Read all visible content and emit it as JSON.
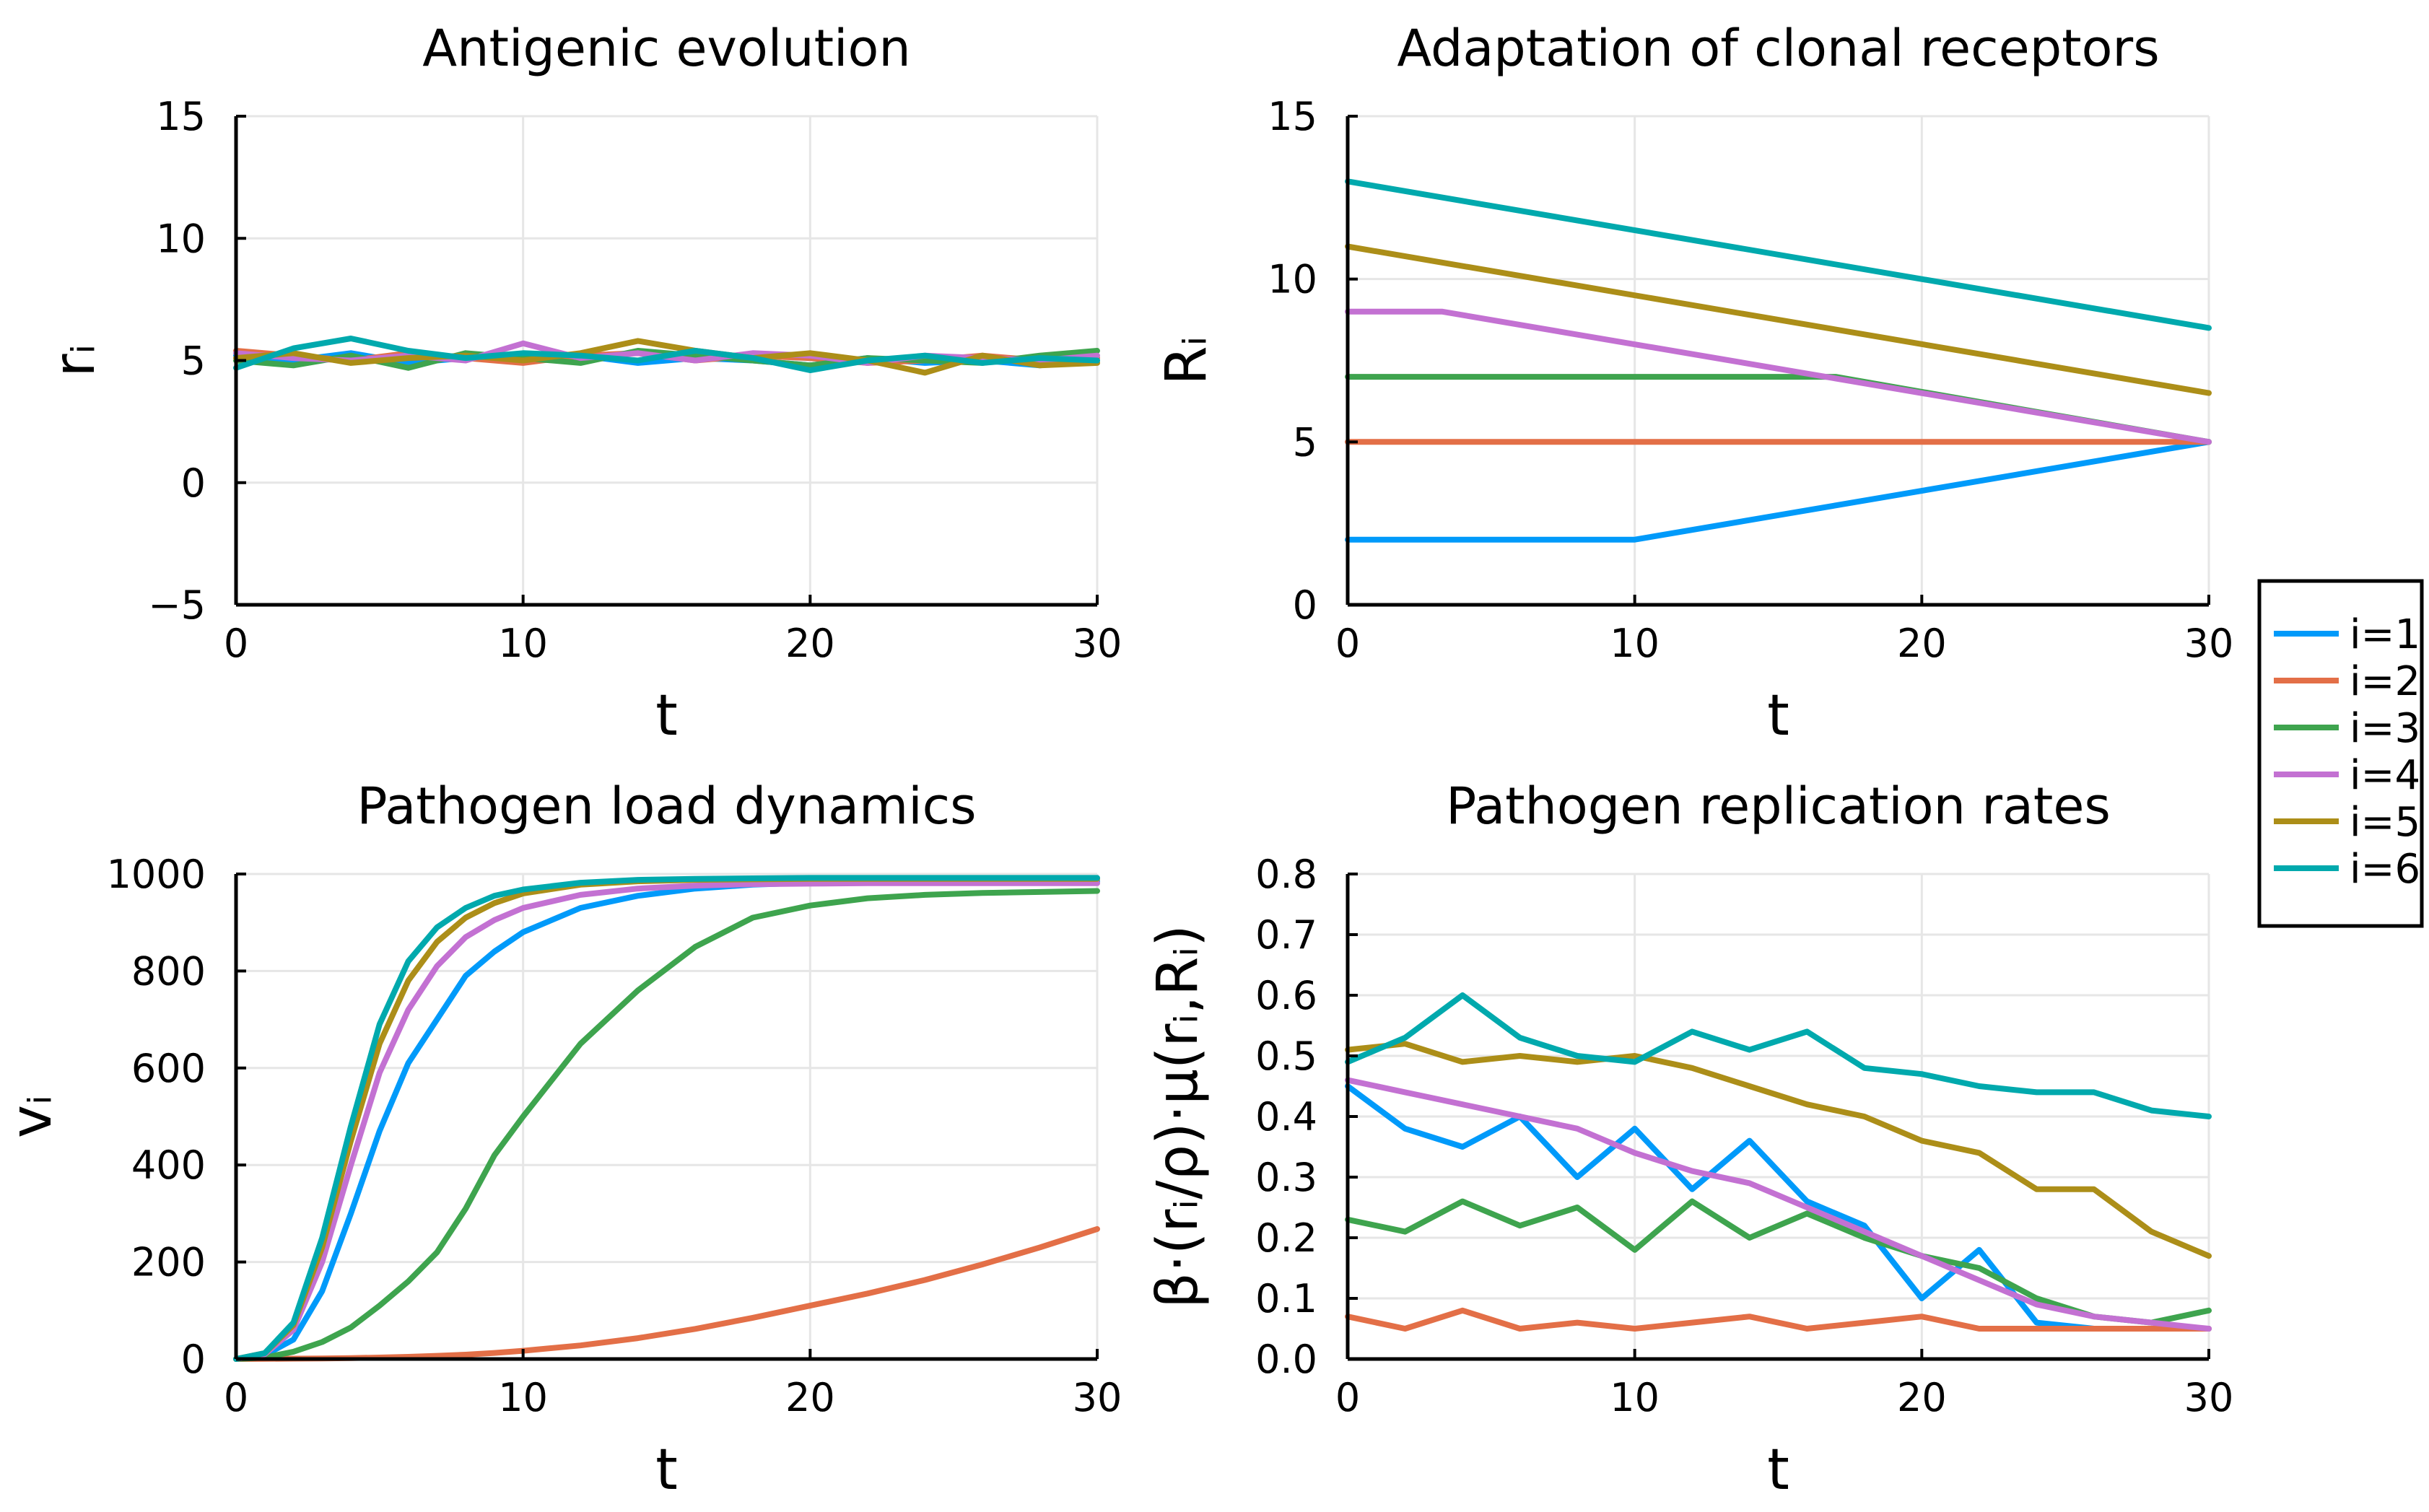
{
  "colors": {
    "i1": "#009AFA",
    "i2": "#E36F47",
    "i3": "#3EA44E",
    "i4": "#C371D2",
    "i5": "#AC8E18",
    "i6": "#00A9AD",
    "grid": "#E6E6E6",
    "axis": "#000000"
  },
  "legend": {
    "entries": [
      "i=1",
      "i=2",
      "i=3",
      "i=4",
      "i=5",
      "i=6"
    ]
  },
  "chart_data": [
    {
      "type": "line",
      "title": "Antigenic evolution",
      "xlabel": "t",
      "ylabel": "rᵢ",
      "xlim": [
        0,
        30
      ],
      "ylim": [
        -5,
        15
      ],
      "xticks": [
        0,
        10,
        20,
        30
      ],
      "xtick_labels": [
        "0",
        "10",
        "20",
        "30"
      ],
      "yticks": [
        -5,
        0,
        5,
        10,
        15
      ],
      "ytick_labels": [
        "−5",
        "0",
        "5",
        "10",
        "15"
      ],
      "grid": true,
      "x": [
        0,
        2,
        4,
        6,
        8,
        10,
        12,
        14,
        16,
        18,
        20,
        22,
        24,
        26,
        28,
        30
      ],
      "series": [
        {
          "name": "i=1",
          "values": [
            5.2,
            5.0,
            5.3,
            4.9,
            5.1,
            5.0,
            5.2,
            4.9,
            5.1,
            5.0,
            4.8,
            5.1,
            4.9,
            5.0,
            4.8,
            5.0
          ]
        },
        {
          "name": "i=2",
          "values": [
            5.4,
            5.2,
            5.0,
            5.3,
            5.1,
            4.9,
            5.2,
            5.3,
            5.0,
            5.2,
            5.1,
            4.9,
            5.0,
            5.2,
            5.0,
            5.1
          ]
        },
        {
          "name": "i=3",
          "values": [
            5.0,
            4.8,
            5.2,
            4.7,
            5.3,
            5.1,
            4.9,
            5.4,
            5.2,
            5.0,
            4.8,
            5.1,
            5.0,
            4.9,
            5.2,
            5.4
          ]
        },
        {
          "name": "i=4",
          "values": [
            5.3,
            5.1,
            5.0,
            5.2,
            5.0,
            5.7,
            5.1,
            5.3,
            5.0,
            5.3,
            5.2,
            4.9,
            5.2,
            5.1,
            5.0,
            5.2
          ]
        },
        {
          "name": "i=5",
          "values": [
            5.1,
            5.3,
            4.9,
            5.1,
            5.2,
            5.0,
            5.3,
            5.8,
            5.4,
            5.1,
            5.3,
            5.0,
            4.5,
            5.2,
            4.8,
            4.9
          ]
        },
        {
          "name": "i=6",
          "values": [
            4.7,
            5.5,
            5.9,
            5.4,
            5.1,
            5.3,
            5.2,
            5.0,
            5.4,
            5.1,
            4.6,
            5.0,
            5.2,
            4.9,
            5.1,
            5.0
          ]
        }
      ]
    },
    {
      "type": "line",
      "title": "Adaptation of clonal receptors",
      "xlabel": "t",
      "ylabel": "Rᵢ",
      "xlim": [
        0,
        30
      ],
      "ylim": [
        0,
        15
      ],
      "xticks": [
        0,
        10,
        20,
        30
      ],
      "xtick_labels": [
        "0",
        "10",
        "20",
        "30"
      ],
      "yticks": [
        0,
        5,
        10,
        15
      ],
      "ytick_labels": [
        "0",
        "5",
        "10",
        "15"
      ],
      "grid": true,
      "series": [
        {
          "name": "i=1",
          "x": [
            0,
            10,
            30
          ],
          "values": [
            2,
            2,
            5
          ]
        },
        {
          "name": "i=2",
          "x": [
            0,
            30
          ],
          "values": [
            5,
            5
          ]
        },
        {
          "name": "i=3",
          "x": [
            0,
            17,
            30
          ],
          "values": [
            7,
            7,
            5
          ]
        },
        {
          "name": "i=4",
          "x": [
            0,
            3.3,
            30
          ],
          "values": [
            9,
            9,
            5
          ]
        },
        {
          "name": "i=5",
          "x": [
            0,
            30
          ],
          "values": [
            11,
            6.5
          ]
        },
        {
          "name": "i=6",
          "x": [
            0,
            30
          ],
          "values": [
            13,
            8.5
          ]
        }
      ]
    },
    {
      "type": "line",
      "title": "Pathogen load dynamics",
      "xlabel": "t",
      "ylabel": "vᵢ",
      "xlim": [
        0,
        30
      ],
      "ylim": [
        0,
        1000
      ],
      "xticks": [
        0,
        10,
        20,
        30
      ],
      "xtick_labels": [
        "0",
        "10",
        "20",
        "30"
      ],
      "yticks": [
        0,
        200,
        400,
        600,
        800,
        1000
      ],
      "ytick_labels": [
        "0",
        "200",
        "400",
        "600",
        "800",
        "1000"
      ],
      "grid": true,
      "x": [
        0,
        1,
        2,
        3,
        4,
        5,
        6,
        7,
        8,
        9,
        10,
        12,
        14,
        16,
        18,
        20,
        22,
        24,
        26,
        28,
        30
      ],
      "series": [
        {
          "name": "i=1",
          "values": [
            0,
            8,
            40,
            140,
            300,
            470,
            610,
            700,
            790,
            840,
            880,
            930,
            955,
            970,
            978,
            982,
            984,
            985,
            985,
            985,
            985
          ]
        },
        {
          "name": "i=2",
          "values": [
            0,
            0.3,
            0.7,
            1.2,
            2,
            3,
            4.5,
            6.5,
            9,
            12.5,
            17,
            28,
            43,
            62,
            85,
            110,
            135,
            163,
            195,
            230,
            268
          ]
        },
        {
          "name": "i=3",
          "values": [
            0,
            3,
            15,
            35,
            65,
            110,
            160,
            220,
            310,
            420,
            500,
            650,
            760,
            850,
            910,
            935,
            950,
            957,
            961,
            963,
            965
          ]
        },
        {
          "name": "i=4",
          "values": [
            0,
            10,
            60,
            200,
            400,
            590,
            720,
            810,
            870,
            905,
            930,
            957,
            970,
            976,
            979,
            980,
            981,
            981,
            981,
            981,
            981
          ]
        },
        {
          "name": "i=5",
          "values": [
            0,
            12,
            70,
            230,
            450,
            650,
            780,
            860,
            910,
            940,
            960,
            978,
            985,
            988,
            989,
            990,
            990,
            990,
            990,
            990,
            990
          ]
        },
        {
          "name": "i=6",
          "values": [
            0,
            12,
            75,
            250,
            480,
            690,
            820,
            890,
            930,
            955,
            968,
            982,
            988,
            990,
            991,
            992,
            992,
            992,
            992,
            992,
            992
          ]
        }
      ]
    },
    {
      "type": "line",
      "title": "Pathogen replication rates",
      "xlabel": "t",
      "ylabel": "β·(rᵢ/ρ)·μ(rᵢ,Rᵢ)",
      "xlim": [
        0,
        30
      ],
      "ylim": [
        0.0,
        0.8
      ],
      "xticks": [
        0,
        10,
        20,
        30
      ],
      "xtick_labels": [
        "0",
        "10",
        "20",
        "30"
      ],
      "yticks": [
        0.0,
        0.1,
        0.2,
        0.3,
        0.4,
        0.5,
        0.6,
        0.7,
        0.8
      ],
      "ytick_labels": [
        "0.0",
        "0.1",
        "0.2",
        "0.3",
        "0.4",
        "0.5",
        "0.6",
        "0.7",
        "0.8"
      ],
      "grid": true,
      "x": [
        0,
        2,
        4,
        6,
        8,
        10,
        12,
        14,
        16,
        18,
        20,
        22,
        24,
        26,
        28,
        30
      ],
      "series": [
        {
          "name": "i=1",
          "values": [
            0.45,
            0.38,
            0.35,
            0.4,
            0.3,
            0.38,
            0.28,
            0.36,
            0.26,
            0.22,
            0.1,
            0.18,
            0.06,
            0.05,
            0.05,
            0.05
          ]
        },
        {
          "name": "i=2",
          "values": [
            0.07,
            0.05,
            0.08,
            0.05,
            0.06,
            0.05,
            0.06,
            0.07,
            0.05,
            0.06,
            0.07,
            0.05,
            0.05,
            0.05,
            0.05,
            0.05
          ]
        },
        {
          "name": "i=3",
          "values": [
            0.23,
            0.21,
            0.26,
            0.22,
            0.25,
            0.18,
            0.26,
            0.2,
            0.24,
            0.2,
            0.17,
            0.15,
            0.1,
            0.07,
            0.06,
            0.08
          ]
        },
        {
          "name": "i=4",
          "values": [
            0.46,
            0.44,
            0.42,
            0.4,
            0.38,
            0.34,
            0.31,
            0.29,
            0.25,
            0.21,
            0.17,
            0.13,
            0.09,
            0.07,
            0.06,
            0.05
          ]
        },
        {
          "name": "i=5",
          "values": [
            0.51,
            0.52,
            0.49,
            0.5,
            0.49,
            0.5,
            0.48,
            0.45,
            0.42,
            0.4,
            0.36,
            0.34,
            0.28,
            0.28,
            0.21,
            0.17
          ]
        },
        {
          "name": "i=6",
          "values": [
            0.49,
            0.53,
            0.6,
            0.53,
            0.5,
            0.49,
            0.54,
            0.51,
            0.54,
            0.48,
            0.47,
            0.45,
            0.44,
            0.44,
            0.41,
            0.4
          ]
        }
      ]
    }
  ]
}
